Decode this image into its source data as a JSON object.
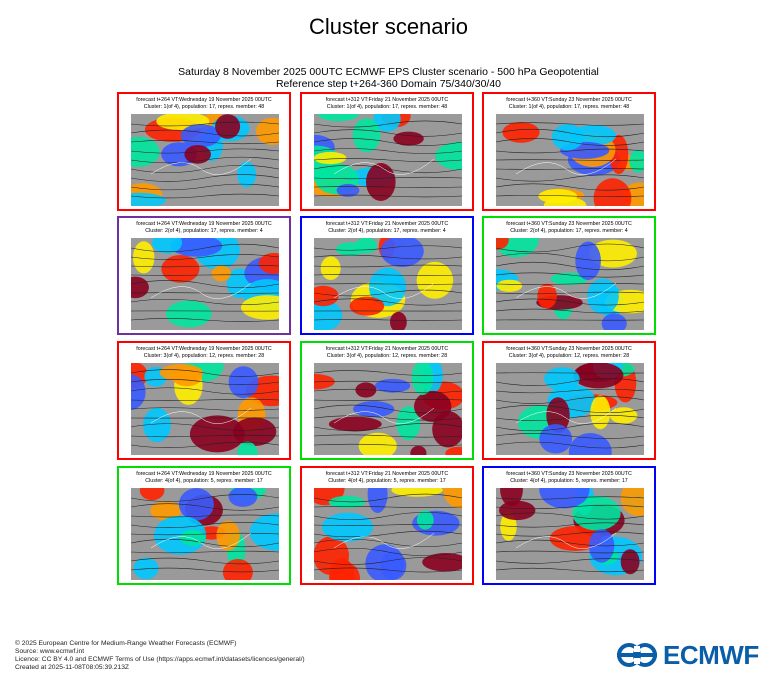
{
  "title": "Cluster scenario",
  "subtitle": {
    "line1": "Saturday 8 November 2025 00UTC ECMWF EPS Cluster scenario - 500 hPa Geopotential",
    "line2": "Reference step t+264-360 Domain 75/340/30/40"
  },
  "panels": [
    {
      "line1": "forecast t+264 VT:Wednesday 19 November 2025 00UTC",
      "line2": "Cluster: 1(of 4), population: 17, repres. member: 48",
      "border": "#ff0000"
    },
    {
      "line1": "forecast t+312 VT:Friday 21 November 2025 00UTC",
      "line2": "Cluster: 1(of 4), population: 17, repres. member: 48",
      "border": "#ff0000"
    },
    {
      "line1": "forecast t+360 VT:Sunday 23 November 2025 00UTC",
      "line2": "Cluster: 1(of 4), population: 17, repres. member: 48",
      "border": "#ff0000"
    },
    {
      "line1": "forecast t+264 VT:Wednesday 19 November 2025 00UTC",
      "line2": "Cluster: 2(of 4), population: 17, repres. member: 4",
      "border": "#7030a0"
    },
    {
      "line1": "forecast t+312 VT:Friday 21 November 2025 00UTC",
      "line2": "Cluster: 2(of 4), population: 17, repres. member: 4",
      "border": "#0000ff"
    },
    {
      "line1": "forecast t+360 VT:Sunday 23 November 2025 00UTC",
      "line2": "Cluster: 2(of 4), population: 17, repres. member: 4",
      "border": "#00dd00"
    },
    {
      "line1": "forecast t+264 VT:Wednesday 19 November 2025 00UTC",
      "line2": "Cluster: 3(of 4), population: 12, repres. member: 28",
      "border": "#ff0000"
    },
    {
      "line1": "forecast t+312 VT:Friday 21 November 2025 00UTC",
      "line2": "Cluster: 3(of 4), population: 12, repres. member: 28",
      "border": "#00dd00"
    },
    {
      "line1": "forecast t+360 VT:Sunday 23 November 2025 00UTC",
      "line2": "Cluster: 3(of 4), population: 12, repres. member: 28",
      "border": "#ff0000"
    },
    {
      "line1": "forecast t+264 VT:Wednesday 19 November 2025 00UTC",
      "line2": "Cluster: 4(of 4), population: 5, repres. member: 17",
      "border": "#00dd00"
    },
    {
      "line1": "forecast t+312 VT:Friday 21 November 2025 00UTC",
      "line2": "Cluster: 4(of 4), population: 5, repres. member: 17",
      "border": "#ff0000"
    },
    {
      "line1": "forecast t+360 VT:Sunday 23 November 2025 00UTC",
      "line2": "Cluster: 4(of 4), population: 5, repres. member: 17",
      "border": "#0000ff"
    }
  ],
  "footer": {
    "copyright": "© 2025 European Centre for Medium-Range Weather Forecasts (ECMWF)",
    "source": "Source: www.ecmwf.int",
    "licence": "Licence: CC BY 4.0 and ECMWF Terms of Use (https://apps.ecmwf.int/datasets/licences/general/)",
    "created": "Created at 2025-11-08T08:05:39.213Z"
  },
  "logo": {
    "text": "ECMWF",
    "color": "#0a5ea8"
  }
}
